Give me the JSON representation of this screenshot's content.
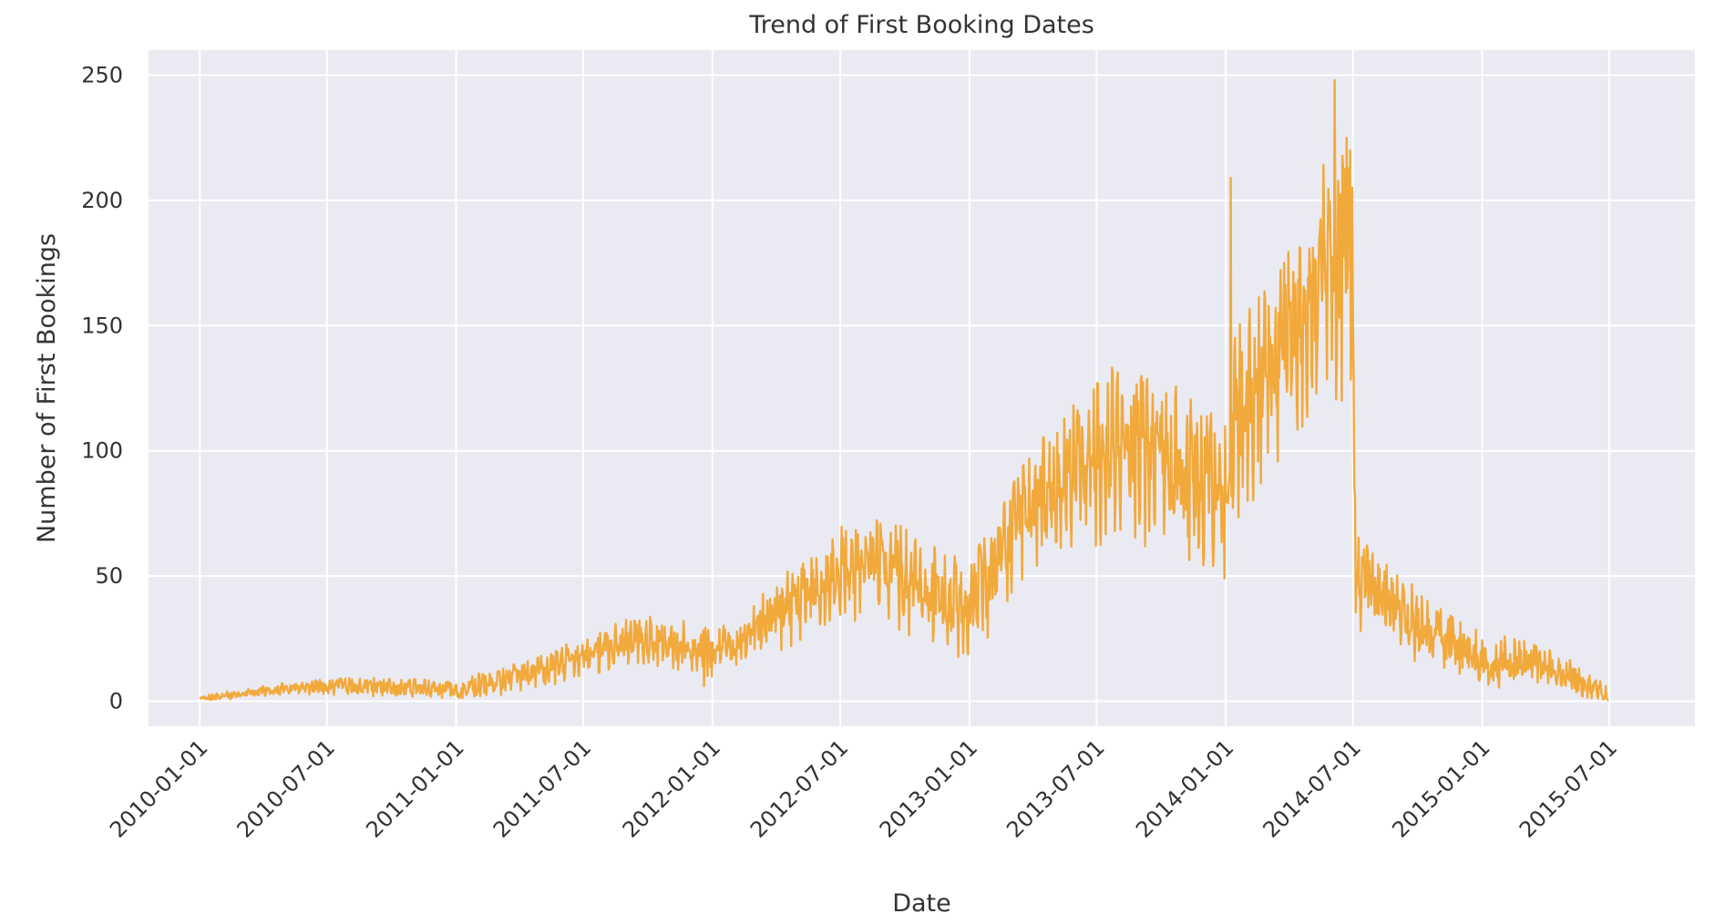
{
  "chart_data": {
    "type": "line",
    "title": "Trend of First Booking Dates",
    "xlabel": "Date",
    "ylabel": "Number of First Bookings",
    "x_range": [
      "2010-01-01",
      "2015-06-30"
    ],
    "xlim": [
      "2009-10-20",
      "2015-10-31"
    ],
    "ylim": [
      -10,
      260
    ],
    "x_ticks": [
      "2010-01-01",
      "2010-07-01",
      "2011-01-01",
      "2011-07-01",
      "2012-01-01",
      "2012-07-01",
      "2013-01-01",
      "2013-07-01",
      "2014-01-01",
      "2014-07-01",
      "2015-01-01",
      "2015-07-01"
    ],
    "y_ticks": [
      0,
      50,
      100,
      150,
      200,
      250
    ],
    "grid": true,
    "legend": "none",
    "colors": {
      "line": "#F2A93B",
      "plot_background": "#EAEAF2",
      "grid": "#FFFFFF",
      "text": "#333333"
    },
    "trend_points": [
      {
        "x": "2010-01-01",
        "y": 1
      },
      {
        "x": "2010-03-01",
        "y": 3
      },
      {
        "x": "2010-05-01",
        "y": 5
      },
      {
        "x": "2010-07-01",
        "y": 6
      },
      {
        "x": "2010-09-01",
        "y": 6
      },
      {
        "x": "2010-11-01",
        "y": 5
      },
      {
        "x": "2011-01-01",
        "y": 4
      },
      {
        "x": "2011-03-01",
        "y": 8
      },
      {
        "x": "2011-05-01",
        "y": 12
      },
      {
        "x": "2011-07-01",
        "y": 18
      },
      {
        "x": "2011-09-01",
        "y": 24
      },
      {
        "x": "2011-11-01",
        "y": 24
      },
      {
        "x": "2012-01-01",
        "y": 20
      },
      {
        "x": "2012-03-01",
        "y": 28
      },
      {
        "x": "2012-05-01",
        "y": 40
      },
      {
        "x": "2012-07-01",
        "y": 52
      },
      {
        "x": "2012-09-01",
        "y": 55
      },
      {
        "x": "2012-11-01",
        "y": 45
      },
      {
        "x": "2012-12-31",
        "y": 38
      },
      {
        "x": "2013-03-01",
        "y": 65
      },
      {
        "x": "2013-05-01",
        "y": 85
      },
      {
        "x": "2013-07-01",
        "y": 100
      },
      {
        "x": "2013-09-01",
        "y": 102
      },
      {
        "x": "2013-11-01",
        "y": 90
      },
      {
        "x": "2013-12-31",
        "y": 80
      },
      {
        "x": "2014-01-15",
        "y": 110
      },
      {
        "x": "2014-03-01",
        "y": 130
      },
      {
        "x": "2014-05-01",
        "y": 160
      },
      {
        "x": "2014-06-20",
        "y": 175
      },
      {
        "x": "2014-06-30",
        "y": 170
      },
      {
        "x": "2014-07-05",
        "y": 50
      },
      {
        "x": "2014-09-01",
        "y": 35
      },
      {
        "x": "2014-11-01",
        "y": 25
      },
      {
        "x": "2015-01-01",
        "y": 17
      },
      {
        "x": "2015-03-01",
        "y": 16
      },
      {
        "x": "2015-05-01",
        "y": 11
      },
      {
        "x": "2015-06-30",
        "y": 2
      }
    ],
    "noise_envelope": [
      {
        "x": "2010-01-01",
        "y": 1
      },
      {
        "x": "2011-01-01",
        "y": 4
      },
      {
        "x": "2012-01-01",
        "y": 8
      },
      {
        "x": "2012-07-01",
        "y": 12
      },
      {
        "x": "2013-07-01",
        "y": 20
      },
      {
        "x": "2014-06-30",
        "y": 32
      },
      {
        "x": "2014-07-05",
        "y": 14
      },
      {
        "x": "2015-06-30",
        "y": 4
      }
    ],
    "spikes": [
      {
        "x": "2011-12-20",
        "y": 6
      },
      {
        "x": "2012-12-29",
        "y": 20
      },
      {
        "x": "2013-12-30",
        "y": 49
      },
      {
        "x": "2014-01-08",
        "y": 209
      },
      {
        "x": "2014-02-20",
        "y": 87
      },
      {
        "x": "2014-06-05",
        "y": 248
      },
      {
        "x": "2014-06-15",
        "y": 120
      },
      {
        "x": "2014-06-22",
        "y": 225
      },
      {
        "x": "2014-06-27",
        "y": 220
      },
      {
        "x": "2014-06-30",
        "y": 205
      }
    ]
  }
}
